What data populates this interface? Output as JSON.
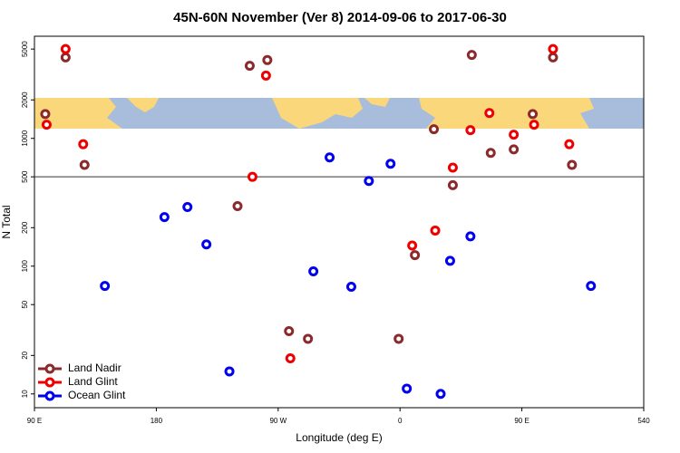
{
  "chart_data": {
    "type": "scatter",
    "title": "45N-60N November (Ver 8)   2014-09-06 to 2017-06-30",
    "x_label": "Longitude (deg E)",
    "y_label": "N Total",
    "xlim": [
      90,
      540
    ],
    "ylim": [
      7.8,
      6300
    ],
    "log_y": true,
    "xticks": [
      {
        "value": 90,
        "label": "90 E"
      },
      180,
      {
        "value": 270,
        "label": "90 W"
      },
      0,
      {
        "value": 450,
        "label": "90 E"
      },
      540
    ],
    "yticks": [
      10,
      20,
      50,
      100,
      200,
      500,
      1000,
      2000,
      5000
    ],
    "hline": 500,
    "legend": "bottom-left",
    "series": [
      {
        "name": "Land Nadir",
        "color": "#8b2a2a",
        "x": [
          113,
          98,
          127,
          249,
          262,
          240,
          278,
          292,
          359,
          371,
          385,
          399,
          413,
          427,
          444,
          458,
          473,
          487
        ],
        "values": [
          4300,
          1550,
          620,
          3700,
          4100,
          295,
          31,
          27,
          27,
          122,
          1180,
          430,
          4500,
          770,
          820,
          1550,
          4300,
          620
        ]
      },
      {
        "name": "Land Glint",
        "color": "#ee0000",
        "x": [
          113,
          99,
          126,
          251,
          261,
          279,
          369,
          386,
          399,
          412,
          426,
          444,
          459,
          473,
          485
        ],
        "values": [
          5000,
          1280,
          900,
          500,
          3100,
          19,
          145,
          190,
          590,
          1160,
          1580,
          1070,
          1280,
          5000,
          900
        ]
      },
      {
        "name": "Ocean Glint",
        "color": "#0000ee",
        "x": [
          142,
          186,
          203,
          217,
          234,
          296,
          308,
          324,
          337,
          353,
          365,
          390,
          397,
          412,
          501
        ],
        "values": [
          70,
          242,
          290,
          148,
          15,
          91,
          710,
          69,
          464,
          633,
          11,
          10,
          110,
          171,
          70
        ]
      }
    ]
  }
}
